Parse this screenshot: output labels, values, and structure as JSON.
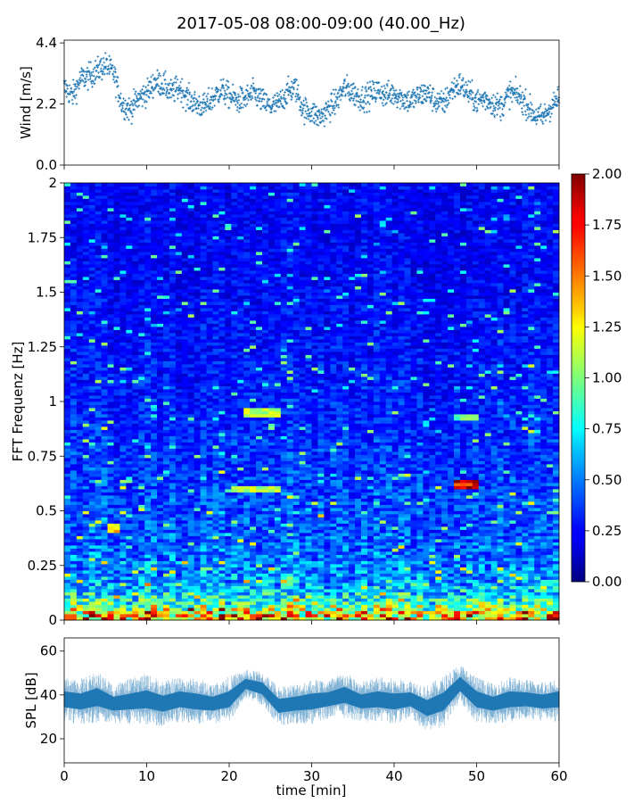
{
  "title": "2017-05-08 08:00-09:00 (40.00_Hz)",
  "chart_data": [
    {
      "id": "wind",
      "type": "scatter",
      "ylabel": "Wind [m/s]",
      "xlim": [
        0,
        60
      ],
      "ylim": [
        0,
        4.5
      ],
      "yticks": [
        0.0,
        2.2,
        4.4
      ],
      "ytick_labels": [
        "0.0",
        "2.2",
        "4.4"
      ],
      "marker": "+",
      "color": "#1f77b4",
      "series": [
        {
          "x": [
            0,
            1,
            2,
            3,
            4,
            5,
            6,
            7,
            8,
            9,
            10,
            11,
            12,
            13,
            14,
            15,
            16,
            17,
            18,
            19,
            20,
            21,
            22,
            23,
            24,
            25,
            26,
            27,
            28,
            29,
            30,
            31,
            32,
            33,
            34,
            35,
            36,
            37,
            38,
            39,
            40,
            41,
            42,
            43,
            44,
            45,
            46,
            47,
            48,
            49,
            50,
            51,
            52,
            53,
            54,
            55,
            56,
            57,
            58,
            59,
            60
          ],
          "y": [
            2.8,
            2.5,
            3.1,
            3.2,
            3.4,
            3.6,
            3.3,
            2.2,
            2.0,
            2.4,
            2.6,
            3.0,
            2.9,
            2.6,
            2.8,
            2.4,
            2.2,
            2.1,
            2.4,
            2.7,
            2.5,
            2.3,
            2.4,
            2.6,
            2.3,
            2.1,
            2.2,
            2.6,
            2.8,
            2.0,
            1.9,
            1.7,
            2.0,
            2.3,
            2.8,
            2.6,
            2.4,
            2.5,
            2.7,
            2.5,
            2.6,
            2.4,
            2.3,
            2.5,
            2.6,
            2.3,
            2.2,
            2.7,
            2.9,
            2.6,
            2.3,
            2.4,
            2.2,
            2.1,
            2.6,
            2.5,
            2.2,
            1.8,
            1.7,
            2.1,
            2.4
          ]
        }
      ]
    },
    {
      "id": "spectrogram",
      "type": "heatmap",
      "ylabel": "FFT Frequenz [Hz]",
      "xlim": [
        0,
        60
      ],
      "ylim": [
        0,
        2
      ],
      "yticks": [
        0,
        0.25,
        0.5,
        0.75,
        1,
        1.25,
        1.5,
        1.75,
        2
      ],
      "ytick_labels": [
        "0",
        "0.25",
        "0.5",
        "0.75",
        "1",
        "1.25",
        "1.5",
        "1.75",
        "2"
      ],
      "colormap": "jet",
      "clim": [
        0.0,
        2.0
      ],
      "colorbar_ticks": [
        0.0,
        0.25,
        0.5,
        0.75,
        1.0,
        1.25,
        1.5,
        1.75,
        2.0
      ],
      "colorbar_labels": [
        "0.00",
        "0.25",
        "0.50",
        "0.75",
        "1.00",
        "1.25",
        "1.50",
        "1.75",
        "2.00"
      ],
      "freq_profile": {
        "freq_hz": [
          0,
          0.04,
          0.08,
          0.15,
          0.25,
          0.4,
          0.6,
          0.8,
          1.0,
          1.25,
          1.5,
          1.75,
          2.0
        ],
        "typical_value": [
          1.5,
          1.2,
          0.85,
          0.6,
          0.5,
          0.42,
          0.38,
          0.34,
          0.3,
          0.28,
          0.25,
          0.24,
          0.24
        ]
      },
      "features": [
        {
          "t": [
            22,
            26
          ],
          "freq_hz": 0.95,
          "value": 1.1
        },
        {
          "t": [
            47,
            50
          ],
          "freq_hz": 0.93,
          "value": 0.95
        },
        {
          "t": [
            47,
            50
          ],
          "freq_hz": 0.62,
          "value": 1.8
        },
        {
          "t": [
            20,
            26
          ],
          "freq_hz": 0.6,
          "value": 1.1
        },
        {
          "t": [
            5,
            7
          ],
          "freq_hz": 0.42,
          "value": 1.3
        }
      ]
    },
    {
      "id": "spl",
      "type": "line",
      "ylabel": "SPL [dB]",
      "xlabel": "time [min]",
      "xlim": [
        0,
        60
      ],
      "ylim": [
        9,
        66
      ],
      "yticks": [
        20,
        40,
        60
      ],
      "ytick_labels": [
        "20",
        "40",
        "60"
      ],
      "xticks": [
        0,
        10,
        20,
        30,
        40,
        50,
        60
      ],
      "xtick_labels": [
        "0",
        "10",
        "20",
        "30",
        "40",
        "50",
        "60"
      ],
      "color": "#1f77b4",
      "series": [
        {
          "x": [
            0,
            2,
            4,
            6,
            8,
            10,
            12,
            14,
            16,
            18,
            20,
            22,
            24,
            26,
            28,
            30,
            32,
            34,
            36,
            38,
            40,
            42,
            44,
            46,
            48,
            50,
            52,
            54,
            56,
            58,
            60
          ],
          "y": [
            38,
            37,
            39,
            36,
            37,
            38,
            36,
            38,
            37,
            36,
            38,
            45,
            43,
            35,
            36,
            37,
            38,
            40,
            37,
            38,
            37,
            38,
            34,
            37,
            45,
            38,
            36,
            38,
            38,
            37,
            38
          ],
          "spread": [
            8,
            8,
            9,
            7,
            8,
            9,
            8,
            8,
            8,
            7,
            8,
            5,
            6,
            7,
            7,
            8,
            7,
            8,
            7,
            8,
            8,
            7,
            8,
            9,
            7,
            8,
            7,
            8,
            7,
            7,
            8
          ]
        }
      ]
    }
  ]
}
